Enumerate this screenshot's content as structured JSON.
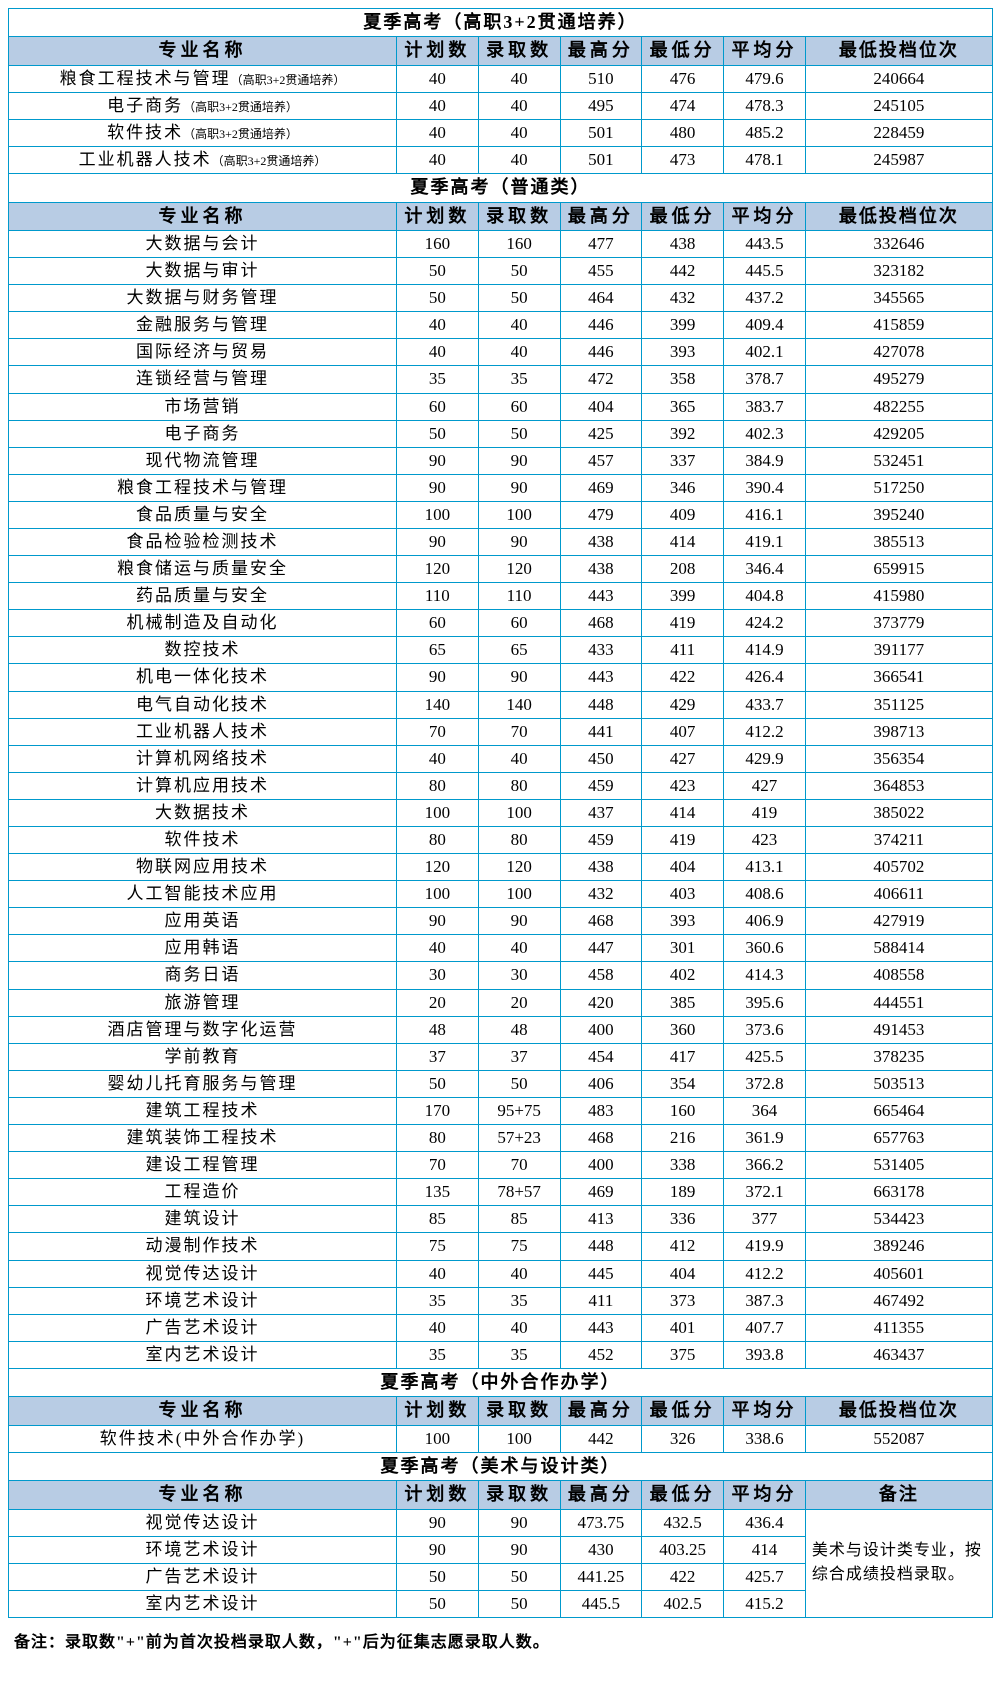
{
  "colors": {
    "border": "#0099cc",
    "header_bg": "#b8cce4",
    "text": "#000000",
    "bg": "#ffffff"
  },
  "columns_main": [
    "专业名称",
    "计划数",
    "录取数",
    "最高分",
    "最低分",
    "平均分",
    "最低投档位次"
  ],
  "columns_art": [
    "专业名称",
    "计划数",
    "录取数",
    "最高分",
    "最低分",
    "平均分",
    "备注"
  ],
  "sections": [
    {
      "title": "夏季高考（高职3+2贯通培养）",
      "note_suffix": "（高职3+2贯通培养）",
      "rows": [
        {
          "name": "粮食工程技术与管理",
          "plan": "40",
          "admit": "40",
          "max": "510",
          "min": "476",
          "avg": "479.6",
          "rank": "240664"
        },
        {
          "name": "电子商务",
          "plan": "40",
          "admit": "40",
          "max": "495",
          "min": "474",
          "avg": "478.3",
          "rank": "245105"
        },
        {
          "name": "软件技术",
          "plan": "40",
          "admit": "40",
          "max": "501",
          "min": "480",
          "avg": "485.2",
          "rank": "228459"
        },
        {
          "name": "工业机器人技术",
          "plan": "40",
          "admit": "40",
          "max": "501",
          "min": "473",
          "avg": "478.1",
          "rank": "245987"
        }
      ]
    },
    {
      "title": "夏季高考（普通类）",
      "rows": [
        {
          "name": "大数据与会计",
          "plan": "160",
          "admit": "160",
          "max": "477",
          "min": "438",
          "avg": "443.5",
          "rank": "332646"
        },
        {
          "name": "大数据与审计",
          "plan": "50",
          "admit": "50",
          "max": "455",
          "min": "442",
          "avg": "445.5",
          "rank": "323182"
        },
        {
          "name": "大数据与财务管理",
          "plan": "50",
          "admit": "50",
          "max": "464",
          "min": "432",
          "avg": "437.2",
          "rank": "345565"
        },
        {
          "name": "金融服务与管理",
          "plan": "40",
          "admit": "40",
          "max": "446",
          "min": "399",
          "avg": "409.4",
          "rank": "415859"
        },
        {
          "name": "国际经济与贸易",
          "plan": "40",
          "admit": "40",
          "max": "446",
          "min": "393",
          "avg": "402.1",
          "rank": "427078"
        },
        {
          "name": "连锁经营与管理",
          "plan": "35",
          "admit": "35",
          "max": "472",
          "min": "358",
          "avg": "378.7",
          "rank": "495279"
        },
        {
          "name": "市场营销",
          "plan": "60",
          "admit": "60",
          "max": "404",
          "min": "365",
          "avg": "383.7",
          "rank": "482255"
        },
        {
          "name": "电子商务",
          "plan": "50",
          "admit": "50",
          "max": "425",
          "min": "392",
          "avg": "402.3",
          "rank": "429205"
        },
        {
          "name": "现代物流管理",
          "plan": "90",
          "admit": "90",
          "max": "457",
          "min": "337",
          "avg": "384.9",
          "rank": "532451"
        },
        {
          "name": "粮食工程技术与管理",
          "plan": "90",
          "admit": "90",
          "max": "469",
          "min": "346",
          "avg": "390.4",
          "rank": "517250"
        },
        {
          "name": "食品质量与安全",
          "plan": "100",
          "admit": "100",
          "max": "479",
          "min": "409",
          "avg": "416.1",
          "rank": "395240"
        },
        {
          "name": "食品检验检测技术",
          "plan": "90",
          "admit": "90",
          "max": "438",
          "min": "414",
          "avg": "419.1",
          "rank": "385513"
        },
        {
          "name": "粮食储运与质量安全",
          "plan": "120",
          "admit": "120",
          "max": "438",
          "min": "208",
          "avg": "346.4",
          "rank": "659915"
        },
        {
          "name": "药品质量与安全",
          "plan": "110",
          "admit": "110",
          "max": "443",
          "min": "399",
          "avg": "404.8",
          "rank": "415980"
        },
        {
          "name": "机械制造及自动化",
          "plan": "60",
          "admit": "60",
          "max": "468",
          "min": "419",
          "avg": "424.2",
          "rank": "373779"
        },
        {
          "name": "数控技术",
          "plan": "65",
          "admit": "65",
          "max": "433",
          "min": "411",
          "avg": "414.9",
          "rank": "391177"
        },
        {
          "name": "机电一体化技术",
          "plan": "90",
          "admit": "90",
          "max": "443",
          "min": "422",
          "avg": "426.4",
          "rank": "366541"
        },
        {
          "name": "电气自动化技术",
          "plan": "140",
          "admit": "140",
          "max": "448",
          "min": "429",
          "avg": "433.7",
          "rank": "351125"
        },
        {
          "name": "工业机器人技术",
          "plan": "70",
          "admit": "70",
          "max": "441",
          "min": "407",
          "avg": "412.2",
          "rank": "398713"
        },
        {
          "name": "计算机网络技术",
          "plan": "40",
          "admit": "40",
          "max": "450",
          "min": "427",
          "avg": "429.9",
          "rank": "356354"
        },
        {
          "name": "计算机应用技术",
          "plan": "80",
          "admit": "80",
          "max": "459",
          "min": "423",
          "avg": "427",
          "rank": "364853"
        },
        {
          "name": "大数据技术",
          "plan": "100",
          "admit": "100",
          "max": "437",
          "min": "414",
          "avg": "419",
          "rank": "385022"
        },
        {
          "name": "软件技术",
          "plan": "80",
          "admit": "80",
          "max": "459",
          "min": "419",
          "avg": "423",
          "rank": "374211"
        },
        {
          "name": "物联网应用技术",
          "plan": "120",
          "admit": "120",
          "max": "438",
          "min": "404",
          "avg": "413.1",
          "rank": "405702"
        },
        {
          "name": "人工智能技术应用",
          "plan": "100",
          "admit": "100",
          "max": "432",
          "min": "403",
          "avg": "408.6",
          "rank": "406611"
        },
        {
          "name": "应用英语",
          "plan": "90",
          "admit": "90",
          "max": "468",
          "min": "393",
          "avg": "406.9",
          "rank": "427919"
        },
        {
          "name": "应用韩语",
          "plan": "40",
          "admit": "40",
          "max": "447",
          "min": "301",
          "avg": "360.6",
          "rank": "588414"
        },
        {
          "name": "商务日语",
          "plan": "30",
          "admit": "30",
          "max": "458",
          "min": "402",
          "avg": "414.3",
          "rank": "408558"
        },
        {
          "name": "旅游管理",
          "plan": "20",
          "admit": "20",
          "max": "420",
          "min": "385",
          "avg": "395.6",
          "rank": "444551"
        },
        {
          "name": "酒店管理与数字化运营",
          "plan": "48",
          "admit": "48",
          "max": "400",
          "min": "360",
          "avg": "373.6",
          "rank": "491453"
        },
        {
          "name": "学前教育",
          "plan": "37",
          "admit": "37",
          "max": "454",
          "min": "417",
          "avg": "425.5",
          "rank": "378235"
        },
        {
          "name": "婴幼儿托育服务与管理",
          "plan": "50",
          "admit": "50",
          "max": "406",
          "min": "354",
          "avg": "372.8",
          "rank": "503513"
        },
        {
          "name": "建筑工程技术",
          "plan": "170",
          "admit": "95+75",
          "max": "483",
          "min": "160",
          "avg": "364",
          "rank": "665464"
        },
        {
          "name": "建筑装饰工程技术",
          "plan": "80",
          "admit": "57+23",
          "max": "468",
          "min": "216",
          "avg": "361.9",
          "rank": "657763"
        },
        {
          "name": "建设工程管理",
          "plan": "70",
          "admit": "70",
          "max": "400",
          "min": "338",
          "avg": "366.2",
          "rank": "531405"
        },
        {
          "name": "工程造价",
          "plan": "135",
          "admit": "78+57",
          "max": "469",
          "min": "189",
          "avg": "372.1",
          "rank": "663178"
        },
        {
          "name": "建筑设计",
          "plan": "85",
          "admit": "85",
          "max": "413",
          "min": "336",
          "avg": "377",
          "rank": "534423"
        },
        {
          "name": "动漫制作技术",
          "plan": "75",
          "admit": "75",
          "max": "448",
          "min": "412",
          "avg": "419.9",
          "rank": "389246"
        },
        {
          "name": "视觉传达设计",
          "plan": "40",
          "admit": "40",
          "max": "445",
          "min": "404",
          "avg": "412.2",
          "rank": "405601"
        },
        {
          "name": "环境艺术设计",
          "plan": "35",
          "admit": "35",
          "max": "411",
          "min": "373",
          "avg": "387.3",
          "rank": "467492"
        },
        {
          "name": "广告艺术设计",
          "plan": "40",
          "admit": "40",
          "max": "443",
          "min": "401",
          "avg": "407.7",
          "rank": "411355"
        },
        {
          "name": "室内艺术设计",
          "plan": "35",
          "admit": "35",
          "max": "452",
          "min": "375",
          "avg": "393.8",
          "rank": "463437"
        }
      ]
    },
    {
      "title": "夏季高考（中外合作办学）",
      "rows": [
        {
          "name": "软件技术(中外合作办学)",
          "plan": "100",
          "admit": "100",
          "max": "442",
          "min": "326",
          "avg": "338.6",
          "rank": "552087"
        }
      ]
    },
    {
      "title": "夏季高考（美术与设计类）",
      "remark": "美术与设计类专业，按综合成绩投档录取。",
      "rows": [
        {
          "name": "视觉传达设计",
          "plan": "90",
          "admit": "90",
          "max": "473.75",
          "min": "432.5",
          "avg": "436.4"
        },
        {
          "name": "环境艺术设计",
          "plan": "90",
          "admit": "90",
          "max": "430",
          "min": "403.25",
          "avg": "414"
        },
        {
          "name": "广告艺术设计",
          "plan": "50",
          "admit": "50",
          "max": "441.25",
          "min": "422",
          "avg": "425.7"
        },
        {
          "name": "室内艺术设计",
          "plan": "50",
          "admit": "50",
          "max": "445.5",
          "min": "402.5",
          "avg": "415.2"
        }
      ]
    }
  ],
  "footnote": "备注：录取数\"+\"前为首次投档录取人数，\"+\"后为征集志愿录取人数。"
}
